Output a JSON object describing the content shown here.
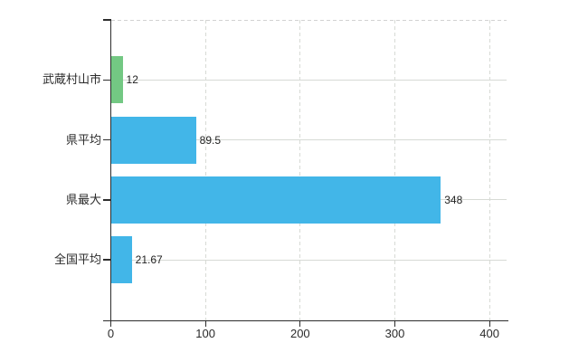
{
  "chart_data": {
    "type": "bar",
    "orientation": "horizontal",
    "title": "",
    "xlabel": "",
    "ylabel": "",
    "categories": [
      "武蔵村山市",
      "県平均",
      "県最大",
      "全国平均"
    ],
    "values": [
      12,
      89.5,
      348,
      21.67
    ],
    "value_labels": [
      "12",
      "89.5",
      "348",
      "21.67"
    ],
    "bar_colors": [
      "#73C883",
      "#42B6E8",
      "#42B6E8",
      "#42B6E8"
    ],
    "xticks": [
      0,
      100,
      200,
      300,
      400
    ],
    "xtick_labels": [
      "0",
      "100",
      "200",
      "300",
      "400"
    ],
    "xlim": [
      0,
      418
    ],
    "grid": true,
    "legend": false,
    "background_color": "#ffffff",
    "axis_color": "#2d2d2d",
    "grid_color": "#d7dad5",
    "text_color": "#2b2b2b"
  }
}
